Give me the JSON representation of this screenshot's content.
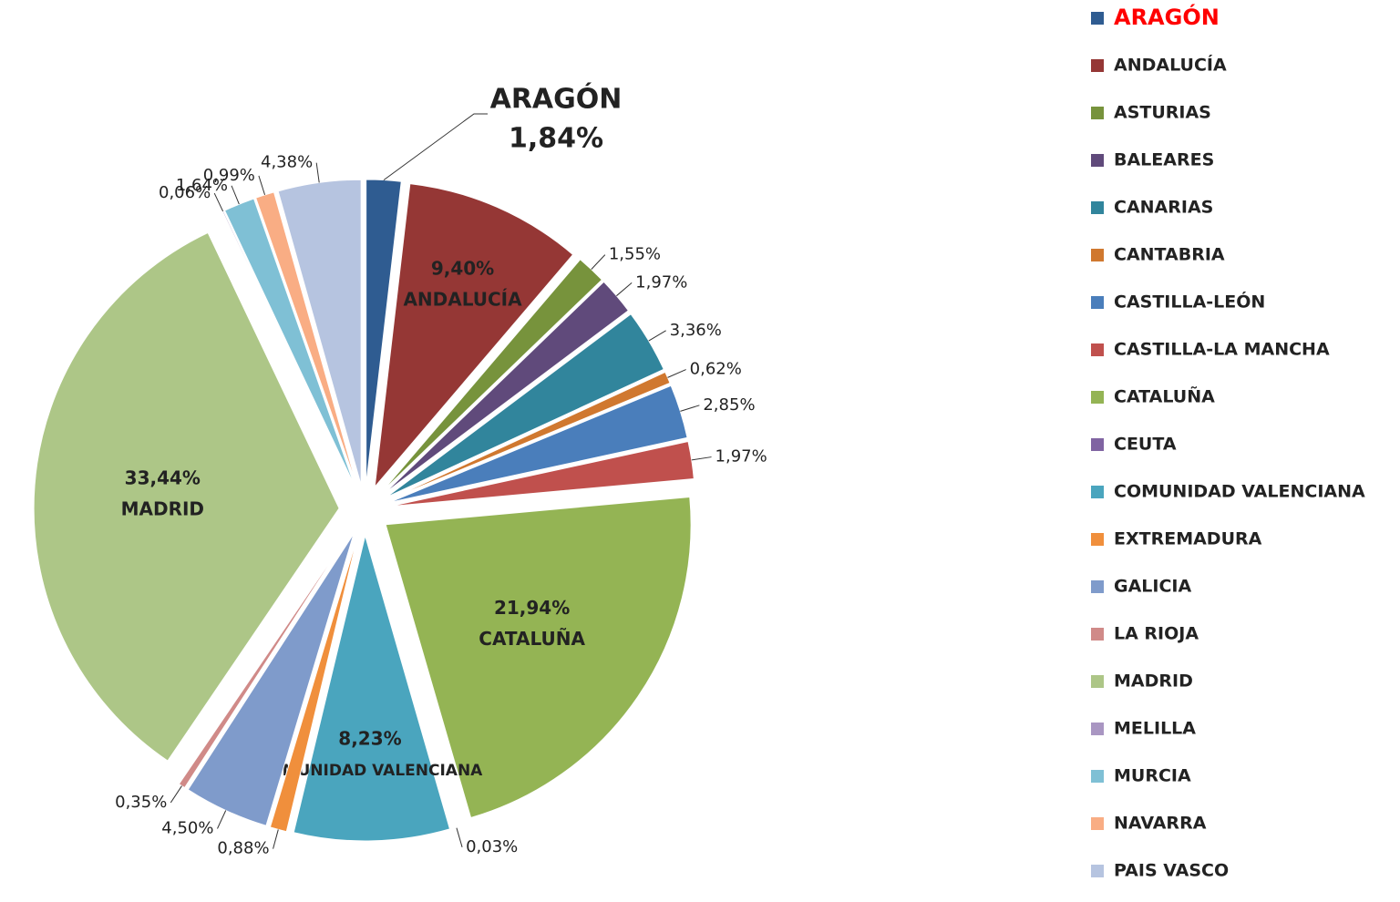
{
  "chart_data": {
    "type": "pie",
    "categories": [
      "ARAGÓN",
      "ANDALUCÍA",
      "ASTURIAS",
      "BALEARES",
      "CANARIAS",
      "CANTABRIA",
      "CASTILLA-LEÓN",
      "CASTILLA-LA MANCHA",
      "CATALUÑA",
      "CEUTA",
      "COMUNIDAD VALENCIANA",
      "EXTREMADURA",
      "GALICIA",
      "LA RIOJA",
      "MADRID",
      "MELILLA",
      "MURCIA",
      "NAVARRA",
      "PAIS VASCO"
    ],
    "values": [
      1.84,
      9.4,
      1.55,
      1.97,
      3.36,
      0.62,
      2.85,
      1.97,
      21.94,
      0.03,
      8.23,
      0.88,
      4.5,
      0.35,
      33.44,
      0.06,
      1.64,
      0.99,
      4.38
    ],
    "value_labels": [
      "1,84%",
      "9,40%",
      "1,55%",
      "1,97%",
      "3,36%",
      "0,62%",
      "2,85%",
      "1,97%",
      "21,94%",
      "0,03%",
      "8,23%",
      "0,88%",
      "4,50%",
      "0,35%",
      "33,44%",
      "0,06%",
      "1,64%",
      "0,99%",
      "4,38%"
    ],
    "colors": [
      "#2f5c91",
      "#953735",
      "#77933c",
      "#604a7b",
      "#31859c",
      "#d0782f",
      "#4a7ebb",
      "#c0504d",
      "#94b454",
      "#8064a2",
      "#4aa5be",
      "#f08f3c",
      "#7f9bcb",
      "#d08a88",
      "#adc687",
      "#a996c2",
      "#7fc0d5",
      "#f9ad84",
      "#b6c4e0"
    ],
    "highlight_index": 0,
    "highlight_color": "#ff0000",
    "legend": "right"
  }
}
